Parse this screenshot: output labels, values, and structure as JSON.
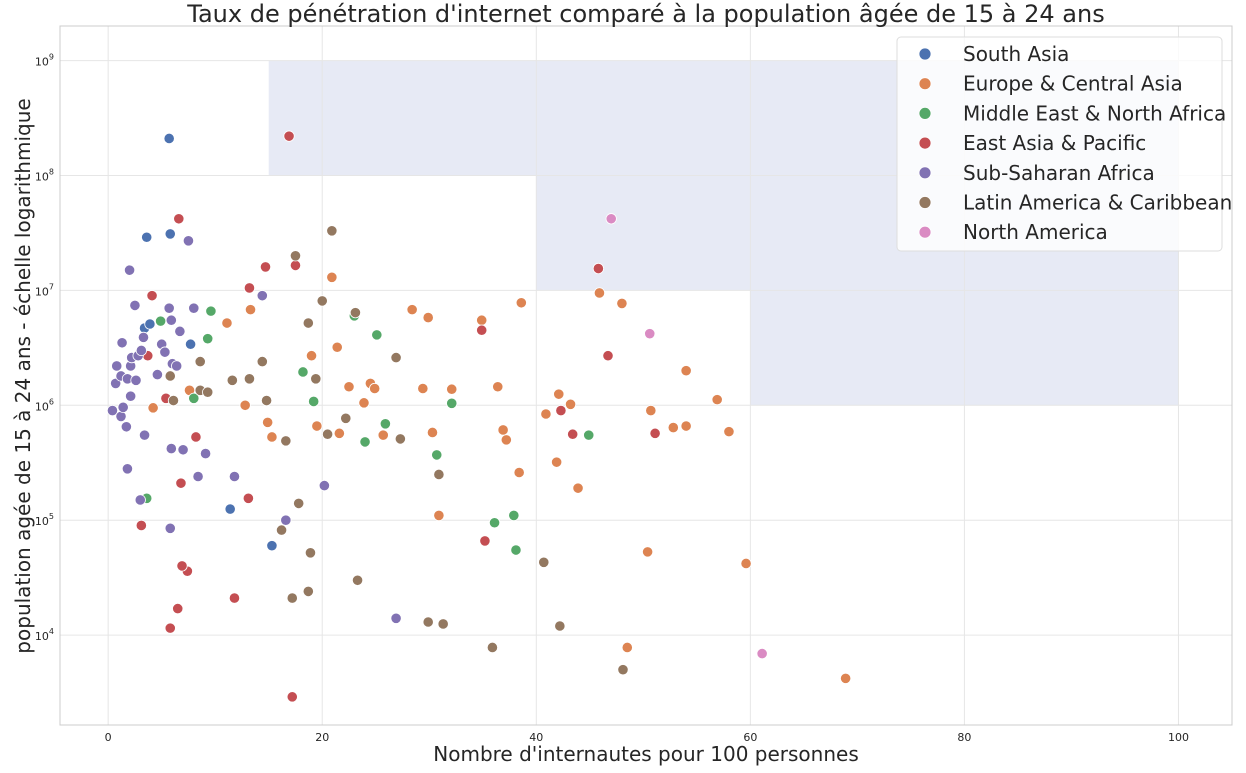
{
  "chart_data": {
    "type": "scatter",
    "title": "Taux de pénétration d'internet comparé à la population âgée de 15 à 24 ans",
    "xlabel": "Nombre d'internautes pour 100 personnes",
    "ylabel": "population agée de 15 à 24 ans - échelle logarithmique",
    "xlim": [
      -4.5,
      105
    ],
    "ylim": [
      1650,
      2000000000
    ],
    "yscale": "log",
    "grid": true,
    "legend_position": "top-right",
    "x_ticks": [
      {
        "value": 0,
        "label": "0"
      },
      {
        "value": 20,
        "label": "20"
      },
      {
        "value": 40,
        "label": "40"
      },
      {
        "value": 60,
        "label": "60"
      },
      {
        "value": 80,
        "label": "80"
      },
      {
        "value": 100,
        "label": "100"
      }
    ],
    "y_ticks": [
      {
        "value": 10000,
        "base": "10",
        "exp": "4"
      },
      {
        "value": 100000,
        "base": "10",
        "exp": "5"
      },
      {
        "value": 1000000,
        "base": "10",
        "exp": "6"
      },
      {
        "value": 10000000,
        "base": "10",
        "exp": "7"
      },
      {
        "value": 100000000,
        "base": "10",
        "exp": "8"
      },
      {
        "value": 1000000000,
        "base": "10",
        "exp": "9"
      }
    ],
    "highlight_regions": [
      {
        "x": [
          15,
          60
        ],
        "y": [
          100000000,
          1000000000
        ],
        "color": "#dfe3f1"
      },
      {
        "x": [
          40,
          60
        ],
        "y": [
          10000000,
          100000000
        ],
        "color": "#dfe3f1"
      },
      {
        "x": [
          60,
          100
        ],
        "y": [
          1000000,
          1000000000
        ],
        "color": "#dfe3f1"
      }
    ],
    "series": [
      {
        "name": "South Asia",
        "color": "#4c72b0",
        "points": [
          [
            5.7,
            210000000
          ],
          [
            3.6,
            29000000
          ],
          [
            5.8,
            31000000
          ],
          [
            3.4,
            4700000
          ],
          [
            3.9,
            5100000
          ],
          [
            7.7,
            3400000
          ],
          [
            11.4,
            125000
          ],
          [
            15.3,
            60000
          ]
        ]
      },
      {
        "name": "Europe & Central Asia",
        "color": "#dd8452",
        "points": [
          [
            4.2,
            950000
          ],
          [
            7.6,
            1350000
          ],
          [
            11.1,
            5200000
          ],
          [
            12.8,
            1000000
          ],
          [
            13.3,
            6800000
          ],
          [
            14.9,
            710000
          ],
          [
            15.3,
            530000
          ],
          [
            19.0,
            2700000
          ],
          [
            19.5,
            660000
          ],
          [
            20.9,
            13000000
          ],
          [
            21.4,
            3200000
          ],
          [
            21.6,
            570000
          ],
          [
            22.5,
            1450000
          ],
          [
            23.9,
            1050000
          ],
          [
            24.5,
            1550000
          ],
          [
            24.9,
            1400000
          ],
          [
            25.7,
            550000
          ],
          [
            28.4,
            6800000
          ],
          [
            29.4,
            1400000
          ],
          [
            29.9,
            5800000
          ],
          [
            30.3,
            580000
          ],
          [
            30.9,
            110000
          ],
          [
            32.1,
            1380000
          ],
          [
            34.9,
            5500000
          ],
          [
            36.4,
            1450000
          ],
          [
            36.9,
            610000
          ],
          [
            37.2,
            500000
          ],
          [
            38.4,
            260000
          ],
          [
            38.6,
            7800000
          ],
          [
            40.9,
            840000
          ],
          [
            41.9,
            320000
          ],
          [
            42.1,
            1250000
          ],
          [
            43.2,
            1020000
          ],
          [
            43.9,
            190000
          ],
          [
            45.9,
            9500000
          ],
          [
            48.0,
            7700000
          ],
          [
            48.5,
            7800
          ],
          [
            50.4,
            53000
          ],
          [
            50.7,
            900000
          ],
          [
            52.8,
            640000
          ],
          [
            54.0,
            2000000
          ],
          [
            54.0,
            660000
          ],
          [
            56.9,
            1120000
          ],
          [
            58.0,
            590000
          ],
          [
            59.6,
            42000
          ],
          [
            68.9,
            4200
          ]
        ]
      },
      {
        "name": "Middle East & North Africa",
        "color": "#55a868",
        "points": [
          [
            3.6,
            155000
          ],
          [
            4.9,
            5400000
          ],
          [
            8.0,
            1150000
          ],
          [
            9.3,
            3800000
          ],
          [
            9.6,
            6600000
          ],
          [
            18.2,
            1950000
          ],
          [
            19.2,
            1080000
          ],
          [
            23.0,
            6000000
          ],
          [
            24.0,
            480000
          ],
          [
            25.1,
            4100000
          ],
          [
            25.9,
            690000
          ],
          [
            30.7,
            370000
          ],
          [
            32.1,
            1040000
          ],
          [
            36.1,
            95000
          ],
          [
            37.9,
            110000
          ],
          [
            38.1,
            55000
          ],
          [
            44.9,
            550000
          ]
        ]
      },
      {
        "name": "East Asia & Pacific",
        "color": "#c44e52",
        "points": [
          [
            16.9,
            220000000
          ],
          [
            6.6,
            42000000
          ],
          [
            4.1,
            9000000
          ],
          [
            3.7,
            2700000
          ],
          [
            5.4,
            1150000
          ],
          [
            8.2,
            530000
          ],
          [
            6.8,
            210000
          ],
          [
            3.1,
            90000
          ],
          [
            7.4,
            36000
          ],
          [
            6.5,
            17000
          ],
          [
            5.8,
            11500
          ],
          [
            6.9,
            40000
          ],
          [
            11.8,
            21000
          ],
          [
            13.1,
            155000
          ],
          [
            13.2,
            10500000
          ],
          [
            14.7,
            16000000
          ],
          [
            17.5,
            16500000
          ],
          [
            17.2,
            2900
          ],
          [
            34.9,
            4500000
          ],
          [
            35.2,
            66000
          ],
          [
            42.3,
            900000
          ],
          [
            43.4,
            560000
          ],
          [
            45.8,
            15500000
          ],
          [
            46.7,
            2700000
          ],
          [
            51.1,
            570000
          ]
        ]
      },
      {
        "name": "Sub-Saharan Africa",
        "color": "#8172b3",
        "points": [
          [
            0.4,
            900000
          ],
          [
            0.7,
            1550000
          ],
          [
            0.8,
            2200000
          ],
          [
            1.2,
            800000
          ],
          [
            1.3,
            3500000
          ],
          [
            1.2,
            1800000
          ],
          [
            1.4,
            960000
          ],
          [
            1.7,
            650000
          ],
          [
            1.8,
            1700000
          ],
          [
            1.8,
            280000
          ],
          [
            2.0,
            15000000
          ],
          [
            2.1,
            2200000
          ],
          [
            2.2,
            2600000
          ],
          [
            2.1,
            1200000
          ],
          [
            2.5,
            7400000
          ],
          [
            2.6,
            1650000
          ],
          [
            2.8,
            2700000
          ],
          [
            3.0,
            150000
          ],
          [
            3.1,
            3000000
          ],
          [
            3.3,
            3900000
          ],
          [
            3.4,
            550000
          ],
          [
            4.6,
            1850000
          ],
          [
            5.0,
            3400000
          ],
          [
            5.3,
            2900000
          ],
          [
            5.7,
            7000000
          ],
          [
            5.8,
            85000
          ],
          [
            5.9,
            420000
          ],
          [
            5.9,
            5500000
          ],
          [
            6.0,
            2300000
          ],
          [
            6.4,
            2200000
          ],
          [
            6.7,
            4400000
          ],
          [
            7.0,
            410000
          ],
          [
            7.5,
            27000000
          ],
          [
            8.0,
            7000000
          ],
          [
            8.4,
            240000
          ],
          [
            9.1,
            380000
          ],
          [
            11.8,
            240000
          ],
          [
            14.4,
            9000000
          ],
          [
            16.6,
            100000
          ],
          [
            20.2,
            200000
          ],
          [
            26.9,
            14000
          ]
        ]
      },
      {
        "name": "Latin America & Caribbean",
        "color": "#937860",
        "points": [
          [
            5.8,
            1800000
          ],
          [
            6.1,
            1100000
          ],
          [
            8.6,
            2400000
          ],
          [
            8.6,
            1350000
          ],
          [
            9.3,
            1300000
          ],
          [
            11.6,
            1650000
          ],
          [
            13.2,
            1700000
          ],
          [
            14.4,
            2400000
          ],
          [
            14.8,
            1100000
          ],
          [
            16.2,
            82000
          ],
          [
            16.6,
            490000
          ],
          [
            17.2,
            21000
          ],
          [
            17.5,
            20000000
          ],
          [
            17.8,
            140000
          ],
          [
            18.7,
            24000
          ],
          [
            18.7,
            5200000
          ],
          [
            18.9,
            52000
          ],
          [
            19.4,
            1700000
          ],
          [
            20.0,
            8100000
          ],
          [
            20.5,
            560000
          ],
          [
            20.9,
            33000000
          ],
          [
            22.2,
            770000
          ],
          [
            23.1,
            6400000
          ],
          [
            23.3,
            30000
          ],
          [
            26.9,
            2600000
          ],
          [
            27.3,
            510000
          ],
          [
            29.9,
            13000
          ],
          [
            30.9,
            250000
          ],
          [
            31.3,
            12500
          ],
          [
            35.9,
            7800
          ],
          [
            40.7,
            43000
          ],
          [
            42.2,
            12000
          ],
          [
            48.1,
            5000
          ]
        ]
      },
      {
        "name": "North America",
        "color": "#da8bc3",
        "points": [
          [
            47.0,
            42000000
          ],
          [
            50.6,
            4200000
          ],
          [
            61.1,
            6900
          ]
        ]
      }
    ]
  }
}
